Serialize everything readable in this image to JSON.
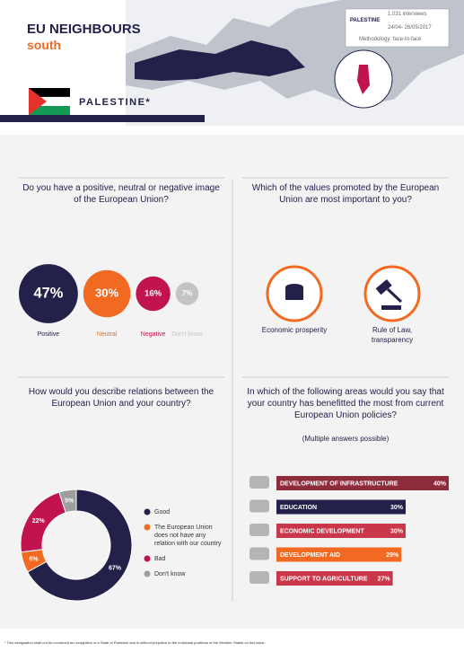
{
  "header": {
    "title": "EU NEIGHBOURS",
    "subtitle": "south",
    "country": "PALESTINE*",
    "info": {
      "country": "PALESTINE",
      "interviews": "1,031 interviews",
      "dates": "24/04- 26/05/2017",
      "methodology": "Methodology: face-to-face"
    }
  },
  "values_question": {
    "title": "Which of the values promoted by the European Union are most important to you?",
    "items": [
      "Economic prosperity",
      "Rule of Law, transparency"
    ]
  },
  "chart_data": [
    {
      "type": "bubble",
      "title": "Do you have a positive, neutral or negative image of the European Union?",
      "categories": [
        "Positive",
        "Neutral",
        "Negative",
        "Don't know"
      ],
      "values": [
        47,
        30,
        16,
        7
      ],
      "value_labels": [
        "47%",
        "30%",
        "16%",
        "7%"
      ],
      "colors": [
        "#23214a",
        "#f26a21",
        "#c0134f",
        "#c4c4c4"
      ]
    },
    {
      "type": "donut",
      "title": "How would you describe relations between the European Union and your country?",
      "categories": [
        "Good",
        "The European Union does not have any relation with our country",
        "Bad",
        "Don't know"
      ],
      "values": [
        67,
        6,
        22,
        5
      ],
      "value_labels": [
        "67%",
        "6%",
        "22%",
        "5%"
      ],
      "colors": [
        "#23214a",
        "#f26a21",
        "#c0134f",
        "#9e9e9e"
      ]
    },
    {
      "type": "hbar",
      "title": "In which of the following areas would you say that your country has benefitted the most from current European Union policies?",
      "subtitle": "(Multiple answers possible)",
      "categories": [
        "DEVELOPMENT OF INFRASTRUCTURE",
        "EDUCATION",
        "ECONOMIC DEVELOPMENT",
        "DEVELOPMENT AID",
        "SUPPORT TO AGRICULTURE"
      ],
      "values": [
        40,
        30,
        30,
        29,
        27
      ],
      "value_labels": [
        "40%",
        "30%",
        "30%",
        "29%",
        "27%"
      ],
      "colors": [
        "#8e2b3d",
        "#23214a",
        "#c8384a",
        "#f26a21",
        "#c8384a"
      ]
    }
  ],
  "footnote": "* This designation shall not be construed as recognition of a State of Palestine and is without prejudice to the individual positions of the Member States on this issue."
}
